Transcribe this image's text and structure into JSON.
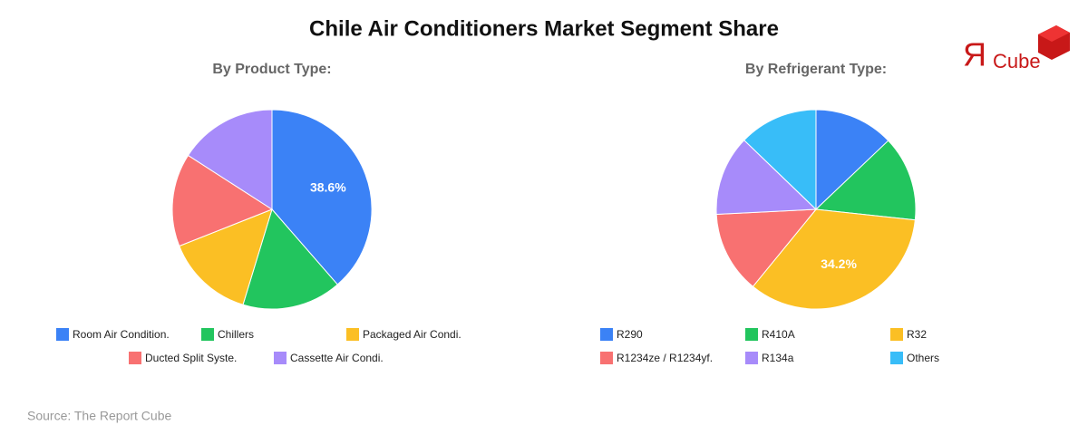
{
  "title": "Chile Air Conditioners Market Segment Share",
  "source": "Source: The Report Cube",
  "logo": {
    "mark": "Я",
    "text": "Cube"
  },
  "chart_data": [
    {
      "type": "pie",
      "title": "By Product Type:",
      "categories": [
        "Room Air Condition.",
        "Chillers",
        "Packaged Air Condi.",
        "Ducted Split Syste.",
        "Cassette Air Condi."
      ],
      "values": [
        38.6,
        16.1,
        14.3,
        15.1,
        15.9
      ],
      "value_labels": [
        "38.6%",
        null,
        null,
        null,
        null
      ],
      "colors": [
        "#3b82f6",
        "#22c55e",
        "#fbbf24",
        "#f87171",
        "#a78bfa"
      ]
    },
    {
      "type": "pie",
      "title": "By Refrigerant Type:",
      "categories": [
        "R290",
        "R410A",
        "R32",
        "R1234ze / R1234yf.",
        "R134a",
        "Others"
      ],
      "values": [
        12.9,
        13.8,
        34.2,
        13.3,
        13.0,
        12.8
      ],
      "value_labels": [
        null,
        null,
        "34.2%",
        null,
        null,
        null
      ],
      "colors": [
        "#3b82f6",
        "#22c55e",
        "#fbbf24",
        "#f87171",
        "#a78bfa",
        "#38bdf8"
      ]
    }
  ]
}
